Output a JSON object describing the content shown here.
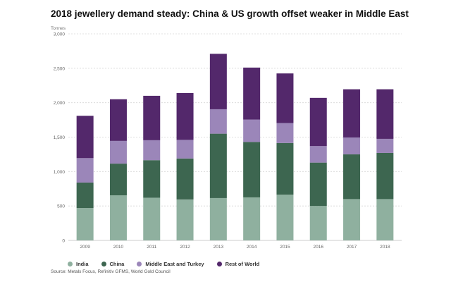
{
  "title": "2018 jewellery demand steady: China & US growth offset weaker in Middle East",
  "source": "Source: Metals Focus, Refinitiv GFMS, World Gold Council",
  "chart_data": {
    "type": "bar",
    "stacked": true,
    "title": "2018 jewellery demand steady: China & US growth offset weaker in Middle East",
    "xlabel": "",
    "ylabel": "Tonnes",
    "ylim": [
      0,
      3000
    ],
    "yticks": [
      "0",
      "500",
      "1,000",
      "1,500",
      "2,000",
      "2,500",
      "3,000"
    ],
    "grid": true,
    "legend_position": "bottom",
    "categories": [
      "2009",
      "2010",
      "2011",
      "2012",
      "2013",
      "2014",
      "2015",
      "2016",
      "2017",
      "2018"
    ],
    "series": [
      {
        "name": "India",
        "color": "#8fb09f",
        "values": [
          470,
          655,
          620,
          595,
          615,
          625,
          665,
          500,
          600,
          600
        ]
      },
      {
        "name": "China",
        "color": "#3d6650",
        "values": [
          370,
          460,
          545,
          595,
          935,
          805,
          750,
          630,
          650,
          670
        ]
      },
      {
        "name": "Middle East and Turkey",
        "color": "#9b86b9",
        "values": [
          355,
          330,
          290,
          270,
          355,
          325,
          290,
          240,
          245,
          205
        ]
      },
      {
        "name": "Rest of World",
        "color": "#53286b",
        "values": [
          615,
          605,
          645,
          680,
          805,
          755,
          720,
          700,
          700,
          720
        ]
      }
    ]
  }
}
